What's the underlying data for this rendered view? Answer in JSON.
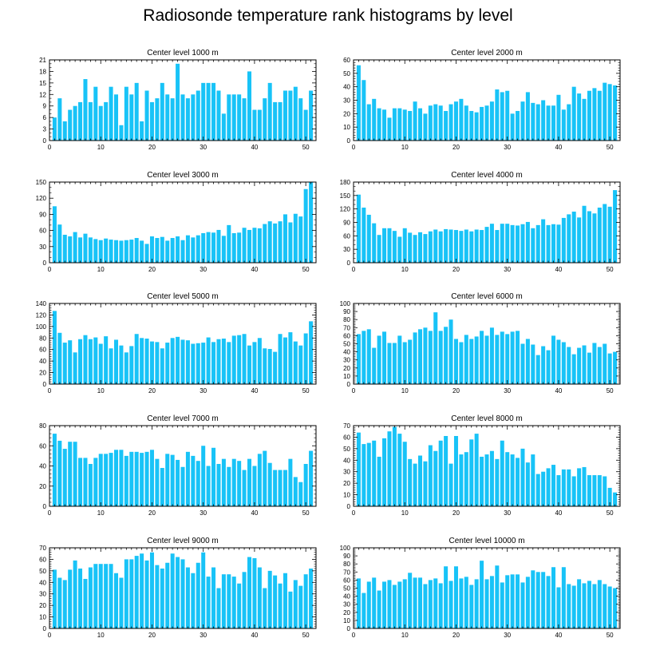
{
  "title": "Radiosonde temperature rank histograms by level",
  "colors": {
    "bar": "#18c3f7",
    "axis": "#000000",
    "background": "#ffffff"
  },
  "chart_data": [
    {
      "type": "bar",
      "title": "Center level 1000 m",
      "ylim": [
        0,
        21
      ],
      "yticks": [
        0,
        3,
        6,
        9,
        12,
        15,
        18,
        21
      ],
      "xlim": [
        0,
        52
      ],
      "xticks": [
        0,
        10,
        20,
        30,
        40,
        50
      ],
      "x": [
        1,
        2,
        3,
        4,
        5,
        6,
        7,
        8,
        9,
        10,
        11,
        12,
        13,
        14,
        15,
        16,
        17,
        18,
        19,
        20,
        21,
        22,
        23,
        24,
        25,
        26,
        27,
        28,
        29,
        30,
        31,
        32,
        33,
        34,
        35,
        36,
        37,
        38,
        39,
        40,
        41,
        42,
        43,
        44,
        45,
        46,
        47,
        48,
        49,
        50,
        51
      ],
      "values": [
        6,
        11,
        5,
        8,
        9,
        10,
        16,
        10,
        14,
        9,
        10,
        14,
        12,
        4,
        14,
        12,
        15,
        5,
        13,
        10,
        11,
        15,
        12,
        11,
        20,
        12,
        11,
        12,
        13,
        15,
        15,
        15,
        13,
        7,
        12,
        12,
        12,
        11,
        18,
        8,
        8,
        11,
        15,
        10,
        10,
        13,
        13,
        14,
        11,
        8,
        13
      ]
    },
    {
      "type": "bar",
      "title": "Center level 2000 m",
      "ylim": [
        0,
        60
      ],
      "yticks": [
        0,
        10,
        20,
        30,
        40,
        50,
        60
      ],
      "xlim": [
        0,
        52
      ],
      "xticks": [
        0,
        10,
        20,
        30,
        40,
        50
      ],
      "x": [
        1,
        2,
        3,
        4,
        5,
        6,
        7,
        8,
        9,
        10,
        11,
        12,
        13,
        14,
        15,
        16,
        17,
        18,
        19,
        20,
        21,
        22,
        23,
        24,
        25,
        26,
        27,
        28,
        29,
        30,
        31,
        32,
        33,
        34,
        35,
        36,
        37,
        38,
        39,
        40,
        41,
        42,
        43,
        44,
        45,
        46,
        47,
        48,
        49,
        50,
        51
      ],
      "values": [
        56,
        45,
        27,
        31,
        24,
        23,
        17,
        24,
        24,
        23,
        22,
        29,
        24,
        20,
        26,
        27,
        26,
        22,
        27,
        29,
        31,
        26,
        22,
        21,
        25,
        26,
        29,
        38,
        36,
        37,
        20,
        22,
        29,
        36,
        28,
        27,
        30,
        26,
        26,
        34,
        23,
        27,
        40,
        35,
        31,
        37,
        39,
        37,
        43,
        42,
        41
      ]
    },
    {
      "type": "bar",
      "title": "Center level 3000 m",
      "ylim": [
        0,
        150
      ],
      "yticks": [
        0,
        30,
        60,
        90,
        120,
        150
      ],
      "xlim": [
        0,
        52
      ],
      "xticks": [
        0,
        10,
        20,
        30,
        40,
        50
      ],
      "x": [
        1,
        2,
        3,
        4,
        5,
        6,
        7,
        8,
        9,
        10,
        11,
        12,
        13,
        14,
        15,
        16,
        17,
        18,
        19,
        20,
        21,
        22,
        23,
        24,
        25,
        26,
        27,
        28,
        29,
        30,
        31,
        32,
        33,
        34,
        35,
        36,
        37,
        38,
        39,
        40,
        41,
        42,
        43,
        44,
        45,
        46,
        47,
        48,
        49,
        50,
        51
      ],
      "values": [
        105,
        71,
        52,
        49,
        57,
        47,
        54,
        47,
        44,
        42,
        45,
        43,
        42,
        41,
        42,
        43,
        46,
        41,
        35,
        49,
        46,
        48,
        41,
        46,
        49,
        42,
        51,
        47,
        51,
        55,
        57,
        56,
        61,
        50,
        70,
        55,
        56,
        65,
        61,
        65,
        64,
        72,
        77,
        73,
        77,
        90,
        75,
        91,
        86,
        137,
        150
      ]
    },
    {
      "type": "bar",
      "title": "Center level 4000 m",
      "ylim": [
        0,
        180
      ],
      "yticks": [
        0,
        30,
        60,
        90,
        120,
        150,
        180
      ],
      "xlim": [
        0,
        52
      ],
      "xticks": [
        0,
        10,
        20,
        30,
        40,
        50
      ],
      "x": [
        1,
        2,
        3,
        4,
        5,
        6,
        7,
        8,
        9,
        10,
        11,
        12,
        13,
        14,
        15,
        16,
        17,
        18,
        19,
        20,
        21,
        22,
        23,
        24,
        25,
        26,
        27,
        28,
        29,
        30,
        31,
        32,
        33,
        34,
        35,
        36,
        37,
        38,
        39,
        40,
        41,
        42,
        43,
        44,
        45,
        46,
        47,
        48,
        49,
        50,
        51
      ],
      "values": [
        152,
        123,
        107,
        88,
        62,
        77,
        77,
        71,
        58,
        77,
        67,
        62,
        68,
        64,
        70,
        74,
        70,
        75,
        74,
        73,
        71,
        74,
        70,
        74,
        73,
        80,
        87,
        73,
        87,
        87,
        84,
        83,
        86,
        91,
        77,
        84,
        97,
        84,
        86,
        85,
        100,
        108,
        114,
        101,
        127,
        115,
        110,
        123,
        131,
        125,
        162
      ]
    },
    {
      "type": "bar",
      "title": "Center level 5000 m",
      "ylim": [
        0,
        140
      ],
      "yticks": [
        0,
        20,
        40,
        60,
        80,
        100,
        120,
        140
      ],
      "xlim": [
        0,
        52
      ],
      "xticks": [
        0,
        10,
        20,
        30,
        40,
        50
      ],
      "x": [
        1,
        2,
        3,
        4,
        5,
        6,
        7,
        8,
        9,
        10,
        11,
        12,
        13,
        14,
        15,
        16,
        17,
        18,
        19,
        20,
        21,
        22,
        23,
        24,
        25,
        26,
        27,
        28,
        29,
        30,
        31,
        32,
        33,
        34,
        35,
        36,
        37,
        38,
        39,
        40,
        41,
        42,
        43,
        44,
        45,
        46,
        47,
        48,
        49,
        50,
        51
      ],
      "values": [
        127,
        89,
        72,
        76,
        55,
        78,
        85,
        78,
        81,
        70,
        83,
        62,
        77,
        67,
        55,
        66,
        87,
        80,
        79,
        74,
        73,
        62,
        72,
        80,
        82,
        77,
        76,
        70,
        71,
        72,
        81,
        73,
        78,
        79,
        73,
        84,
        85,
        87,
        67,
        73,
        80,
        62,
        61,
        56,
        87,
        81,
        90,
        74,
        67,
        88,
        109
      ]
    },
    {
      "type": "bar",
      "title": "Center level 6000 m",
      "ylim": [
        0,
        100
      ],
      "yticks": [
        0,
        10,
        20,
        30,
        40,
        50,
        60,
        70,
        80,
        90,
        100
      ],
      "xlim": [
        0,
        52
      ],
      "xticks": [
        0,
        10,
        20,
        30,
        40,
        50
      ],
      "x": [
        1,
        2,
        3,
        4,
        5,
        6,
        7,
        8,
        9,
        10,
        11,
        12,
        13,
        14,
        15,
        16,
        17,
        18,
        19,
        20,
        21,
        22,
        23,
        24,
        25,
        26,
        27,
        28,
        29,
        30,
        31,
        32,
        33,
        34,
        35,
        36,
        37,
        38,
        39,
        40,
        41,
        42,
        43,
        44,
        45,
        46,
        47,
        48,
        49,
        50,
        51
      ],
      "values": [
        62,
        66,
        68,
        45,
        60,
        65,
        51,
        51,
        60,
        52,
        55,
        64,
        68,
        70,
        66,
        89,
        66,
        71,
        80,
        56,
        52,
        61,
        56,
        59,
        66,
        60,
        70,
        61,
        65,
        62,
        65,
        66,
        50,
        56,
        49,
        36,
        47,
        42,
        60,
        55,
        52,
        46,
        37,
        45,
        48,
        39,
        51,
        46,
        50,
        38,
        40
      ]
    },
    {
      "type": "bar",
      "title": "Center level 7000 m",
      "ylim": [
        0,
        80
      ],
      "yticks": [
        0,
        20,
        40,
        60,
        80
      ],
      "xlim": [
        0,
        52
      ],
      "xticks": [
        0,
        10,
        20,
        30,
        40,
        50
      ],
      "x": [
        1,
        2,
        3,
        4,
        5,
        6,
        7,
        8,
        9,
        10,
        11,
        12,
        13,
        14,
        15,
        16,
        17,
        18,
        19,
        20,
        21,
        22,
        23,
        24,
        25,
        26,
        27,
        28,
        29,
        30,
        31,
        32,
        33,
        34,
        35,
        36,
        37,
        38,
        39,
        40,
        41,
        42,
        43,
        44,
        45,
        46,
        47,
        48,
        49,
        50,
        51
      ],
      "values": [
        72,
        65,
        57,
        64,
        64,
        48,
        48,
        42,
        48,
        52,
        52,
        53,
        56,
        56,
        50,
        54,
        54,
        53,
        54,
        56,
        47,
        38,
        52,
        51,
        46,
        39,
        54,
        50,
        45,
        60,
        40,
        58,
        42,
        47,
        39,
        47,
        45,
        36,
        47,
        40,
        52,
        55,
        43,
        36,
        36,
        36,
        47,
        29,
        24,
        42,
        55
      ]
    },
    {
      "type": "bar",
      "title": "Center level 8000 m",
      "ylim": [
        0,
        70
      ],
      "yticks": [
        0,
        10,
        20,
        30,
        40,
        50,
        60,
        70
      ],
      "xlim": [
        0,
        52
      ],
      "xticks": [
        0,
        10,
        20,
        30,
        40,
        50
      ],
      "x": [
        1,
        2,
        3,
        4,
        5,
        6,
        7,
        8,
        9,
        10,
        11,
        12,
        13,
        14,
        15,
        16,
        17,
        18,
        19,
        20,
        21,
        22,
        23,
        24,
        25,
        26,
        27,
        28,
        29,
        30,
        31,
        32,
        33,
        34,
        35,
        36,
        37,
        38,
        39,
        40,
        41,
        42,
        43,
        44,
        45,
        46,
        47,
        48,
        49,
        50,
        51
      ],
      "values": [
        64,
        54,
        55,
        57,
        43,
        59,
        65,
        69,
        63,
        56,
        41,
        37,
        44,
        39,
        53,
        48,
        57,
        61,
        37,
        61,
        45,
        47,
        58,
        63,
        43,
        45,
        48,
        41,
        57,
        47,
        45,
        42,
        50,
        38,
        45,
        28,
        30,
        33,
        36,
        27,
        32,
        32,
        26,
        33,
        34,
        27,
        27,
        27,
        26,
        16,
        12
      ]
    },
    {
      "type": "bar",
      "title": "Center level 9000 m",
      "ylim": [
        0,
        70
      ],
      "yticks": [
        0,
        10,
        20,
        30,
        40,
        50,
        60,
        70
      ],
      "xlim": [
        0,
        52
      ],
      "xticks": [
        0,
        10,
        20,
        30,
        40,
        50
      ],
      "x": [
        1,
        2,
        3,
        4,
        5,
        6,
        7,
        8,
        9,
        10,
        11,
        12,
        13,
        14,
        15,
        16,
        17,
        18,
        19,
        20,
        21,
        22,
        23,
        24,
        25,
        26,
        27,
        28,
        29,
        30,
        31,
        32,
        33,
        34,
        35,
        36,
        37,
        38,
        39,
        40,
        41,
        42,
        43,
        44,
        45,
        46,
        47,
        48,
        49,
        50,
        51
      ],
      "values": [
        51,
        44,
        42,
        51,
        59,
        52,
        43,
        53,
        56,
        56,
        56,
        56,
        48,
        44,
        60,
        60,
        63,
        65,
        59,
        66,
        55,
        52,
        57,
        65,
        62,
        60,
        53,
        48,
        57,
        66,
        45,
        53,
        35,
        47,
        47,
        45,
        39,
        49,
        62,
        61,
        53,
        35,
        50,
        46,
        39,
        48,
        32,
        42,
        37,
        47,
        52
      ]
    },
    {
      "type": "bar",
      "title": "Center level 10000 m",
      "ylim": [
        0,
        100
      ],
      "yticks": [
        0,
        10,
        20,
        30,
        40,
        50,
        60,
        70,
        80,
        90,
        100
      ],
      "xlim": [
        0,
        52
      ],
      "xticks": [
        0,
        10,
        20,
        30,
        40,
        50
      ],
      "x": [
        1,
        2,
        3,
        4,
        5,
        6,
        7,
        8,
        9,
        10,
        11,
        12,
        13,
        14,
        15,
        16,
        17,
        18,
        19,
        20,
        21,
        22,
        23,
        24,
        25,
        26,
        27,
        28,
        29,
        30,
        31,
        32,
        33,
        34,
        35,
        36,
        37,
        38,
        39,
        40,
        41,
        42,
        43,
        44,
        45,
        46,
        47,
        48,
        49,
        50,
        51
      ],
      "values": [
        62,
        44,
        58,
        63,
        47,
        58,
        60,
        54,
        58,
        61,
        69,
        63,
        63,
        55,
        60,
        62,
        56,
        77,
        59,
        77,
        62,
        64,
        54,
        61,
        84,
        61,
        65,
        78,
        57,
        66,
        67,
        67,
        57,
        64,
        72,
        70,
        70,
        65,
        76,
        51,
        76,
        55,
        53,
        61,
        56,
        59,
        55,
        60,
        55,
        52,
        50
      ]
    }
  ]
}
